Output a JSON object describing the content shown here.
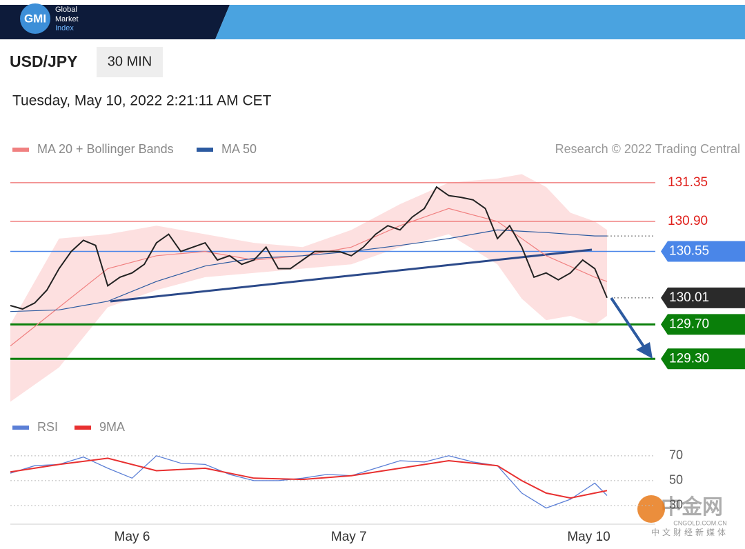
{
  "header": {
    "logo": "GMI",
    "brand": [
      "Global",
      "Market",
      "Index"
    ],
    "symbol": "USD/JPY",
    "timeframe": "30 MIN",
    "timestamp": "Tuesday, May 10, 2022 2:21:11 AM CET"
  },
  "watermark": {
    "name": "中金网",
    "site": "CNGOLD.COM.CN",
    "slogan": "中文财经新媒体"
  },
  "chart_data": [
    {
      "type": "line",
      "credit": "Research © 2022 Trading Central",
      "xlim": [
        0,
        49
      ],
      "ylim": [
        128.74,
        131.55
      ],
      "xticks": [
        {
          "value": 10,
          "label": "May 6"
        },
        {
          "value": 27.8,
          "label": "May 7"
        },
        {
          "value": 47.5,
          "label": "May 10"
        }
      ],
      "band": {
        "name": "MA 20 + Bollinger Bands",
        "color": "#f08080",
        "fill": "#fde0e0",
        "x": [
          0,
          4,
          8,
          12,
          16,
          20,
          24,
          28,
          32,
          36,
          40,
          42,
          44,
          46,
          48,
          49
        ],
        "upper": [
          129.7,
          130.7,
          130.75,
          130.85,
          130.75,
          130.65,
          130.6,
          130.8,
          131.1,
          131.35,
          131.4,
          131.45,
          131.3,
          131.0,
          130.9,
          130.8
        ],
        "lower": [
          128.8,
          129.2,
          129.9,
          130.1,
          130.25,
          130.3,
          130.35,
          130.4,
          130.6,
          130.75,
          130.4,
          130.0,
          129.75,
          129.8,
          129.7,
          129.8
        ]
      },
      "series": [
        {
          "name": "MA 20 + Bollinger Bands",
          "color": "#f08080",
          "x": [
            0,
            4,
            8,
            12,
            16,
            20,
            24,
            28,
            32,
            36,
            40,
            44,
            48,
            49
          ],
          "values": [
            129.45,
            129.9,
            130.35,
            130.5,
            130.55,
            130.45,
            130.5,
            130.6,
            130.85,
            131.05,
            130.9,
            130.5,
            130.25,
            130.2
          ]
        },
        {
          "name": "MA 50",
          "color": "#2c5aa0",
          "x": [
            0,
            4,
            8,
            12,
            16,
            20,
            24,
            28,
            32,
            36,
            40,
            44,
            48,
            49
          ],
          "values": [
            129.85,
            129.87,
            129.97,
            130.2,
            130.38,
            130.47,
            130.5,
            130.55,
            130.62,
            130.7,
            130.8,
            130.77,
            130.73,
            130.73
          ]
        },
        {
          "color": "#222222",
          "x": [
            0,
            1,
            2,
            3,
            4,
            5,
            6,
            7,
            8,
            9,
            10,
            11,
            12,
            13,
            14,
            15,
            16,
            17,
            18,
            19,
            20,
            21,
            22,
            23,
            24,
            25,
            26,
            27,
            28,
            29,
            30,
            31,
            32,
            33,
            34,
            35,
            36,
            37,
            38,
            39,
            40,
            41,
            42,
            43,
            44,
            45,
            46,
            47,
            48,
            49
          ],
          "values": [
            129.92,
            129.88,
            129.95,
            130.1,
            130.35,
            130.55,
            130.68,
            130.62,
            130.15,
            130.25,
            130.3,
            130.4,
            130.65,
            130.75,
            130.55,
            130.6,
            130.65,
            130.45,
            130.5,
            130.4,
            130.45,
            130.6,
            130.35,
            130.35,
            130.45,
            130.55,
            130.55,
            130.55,
            130.5,
            130.6,
            130.75,
            130.85,
            130.8,
            130.95,
            131.05,
            131.3,
            131.2,
            131.18,
            131.15,
            131.05,
            130.7,
            130.85,
            130.6,
            130.25,
            130.3,
            130.22,
            130.3,
            130.45,
            130.35,
            130.01
          ]
        }
      ],
      "levels": [
        {
          "value": 131.35,
          "color": "#f08080",
          "style": "text",
          "text_color": "#e0201c"
        },
        {
          "value": 130.9,
          "label": "130.90",
          "color": "#f08080",
          "style": "text",
          "text_color": "#e0201c"
        },
        {
          "value": 130.55,
          "color": "#4a86e8",
          "style": "box",
          "text_color": "#ffffff"
        },
        {
          "value": 130.01,
          "color": "#2a2a2a",
          "style": "dotted",
          "text_color": "#ffffff"
        },
        {
          "value": 129.7,
          "label": "129.70",
          "color": "#0a7f0a",
          "style": "box",
          "text_color": "#ffffff"
        },
        {
          "value": 129.3,
          "label": "129.30",
          "color": "#0a7f0a",
          "style": "box",
          "text_color": "#ffffff"
        }
      ]
    },
    {
      "type": "line",
      "xlim": [
        0,
        49
      ],
      "ylim": [
        15,
        76
      ],
      "yticks": [
        70,
        50,
        30
      ],
      "series": [
        {
          "name": "RSI",
          "color": "#5b7fd6",
          "x": [
            0,
            2,
            4,
            6,
            8,
            10,
            12,
            14,
            16,
            18,
            20,
            22,
            24,
            26,
            28,
            30,
            32,
            34,
            36,
            38,
            40,
            42,
            44,
            46,
            48,
            49
          ],
          "values": [
            56,
            62,
            63,
            69,
            60,
            52,
            70,
            64,
            63,
            55,
            50,
            50,
            52,
            55,
            54,
            60,
            66,
            65,
            70,
            65,
            62,
            40,
            28,
            35,
            48,
            38
          ]
        },
        {
          "name": "9MA",
          "color": "#e83030",
          "x": [
            0,
            4,
            8,
            12,
            16,
            20,
            24,
            28,
            32,
            36,
            40,
            42,
            44,
            46,
            48,
            49
          ],
          "values": [
            57,
            63,
            68,
            58,
            60,
            52,
            51,
            54,
            60,
            66,
            62,
            50,
            40,
            36,
            40,
            42
          ]
        }
      ]
    }
  ]
}
